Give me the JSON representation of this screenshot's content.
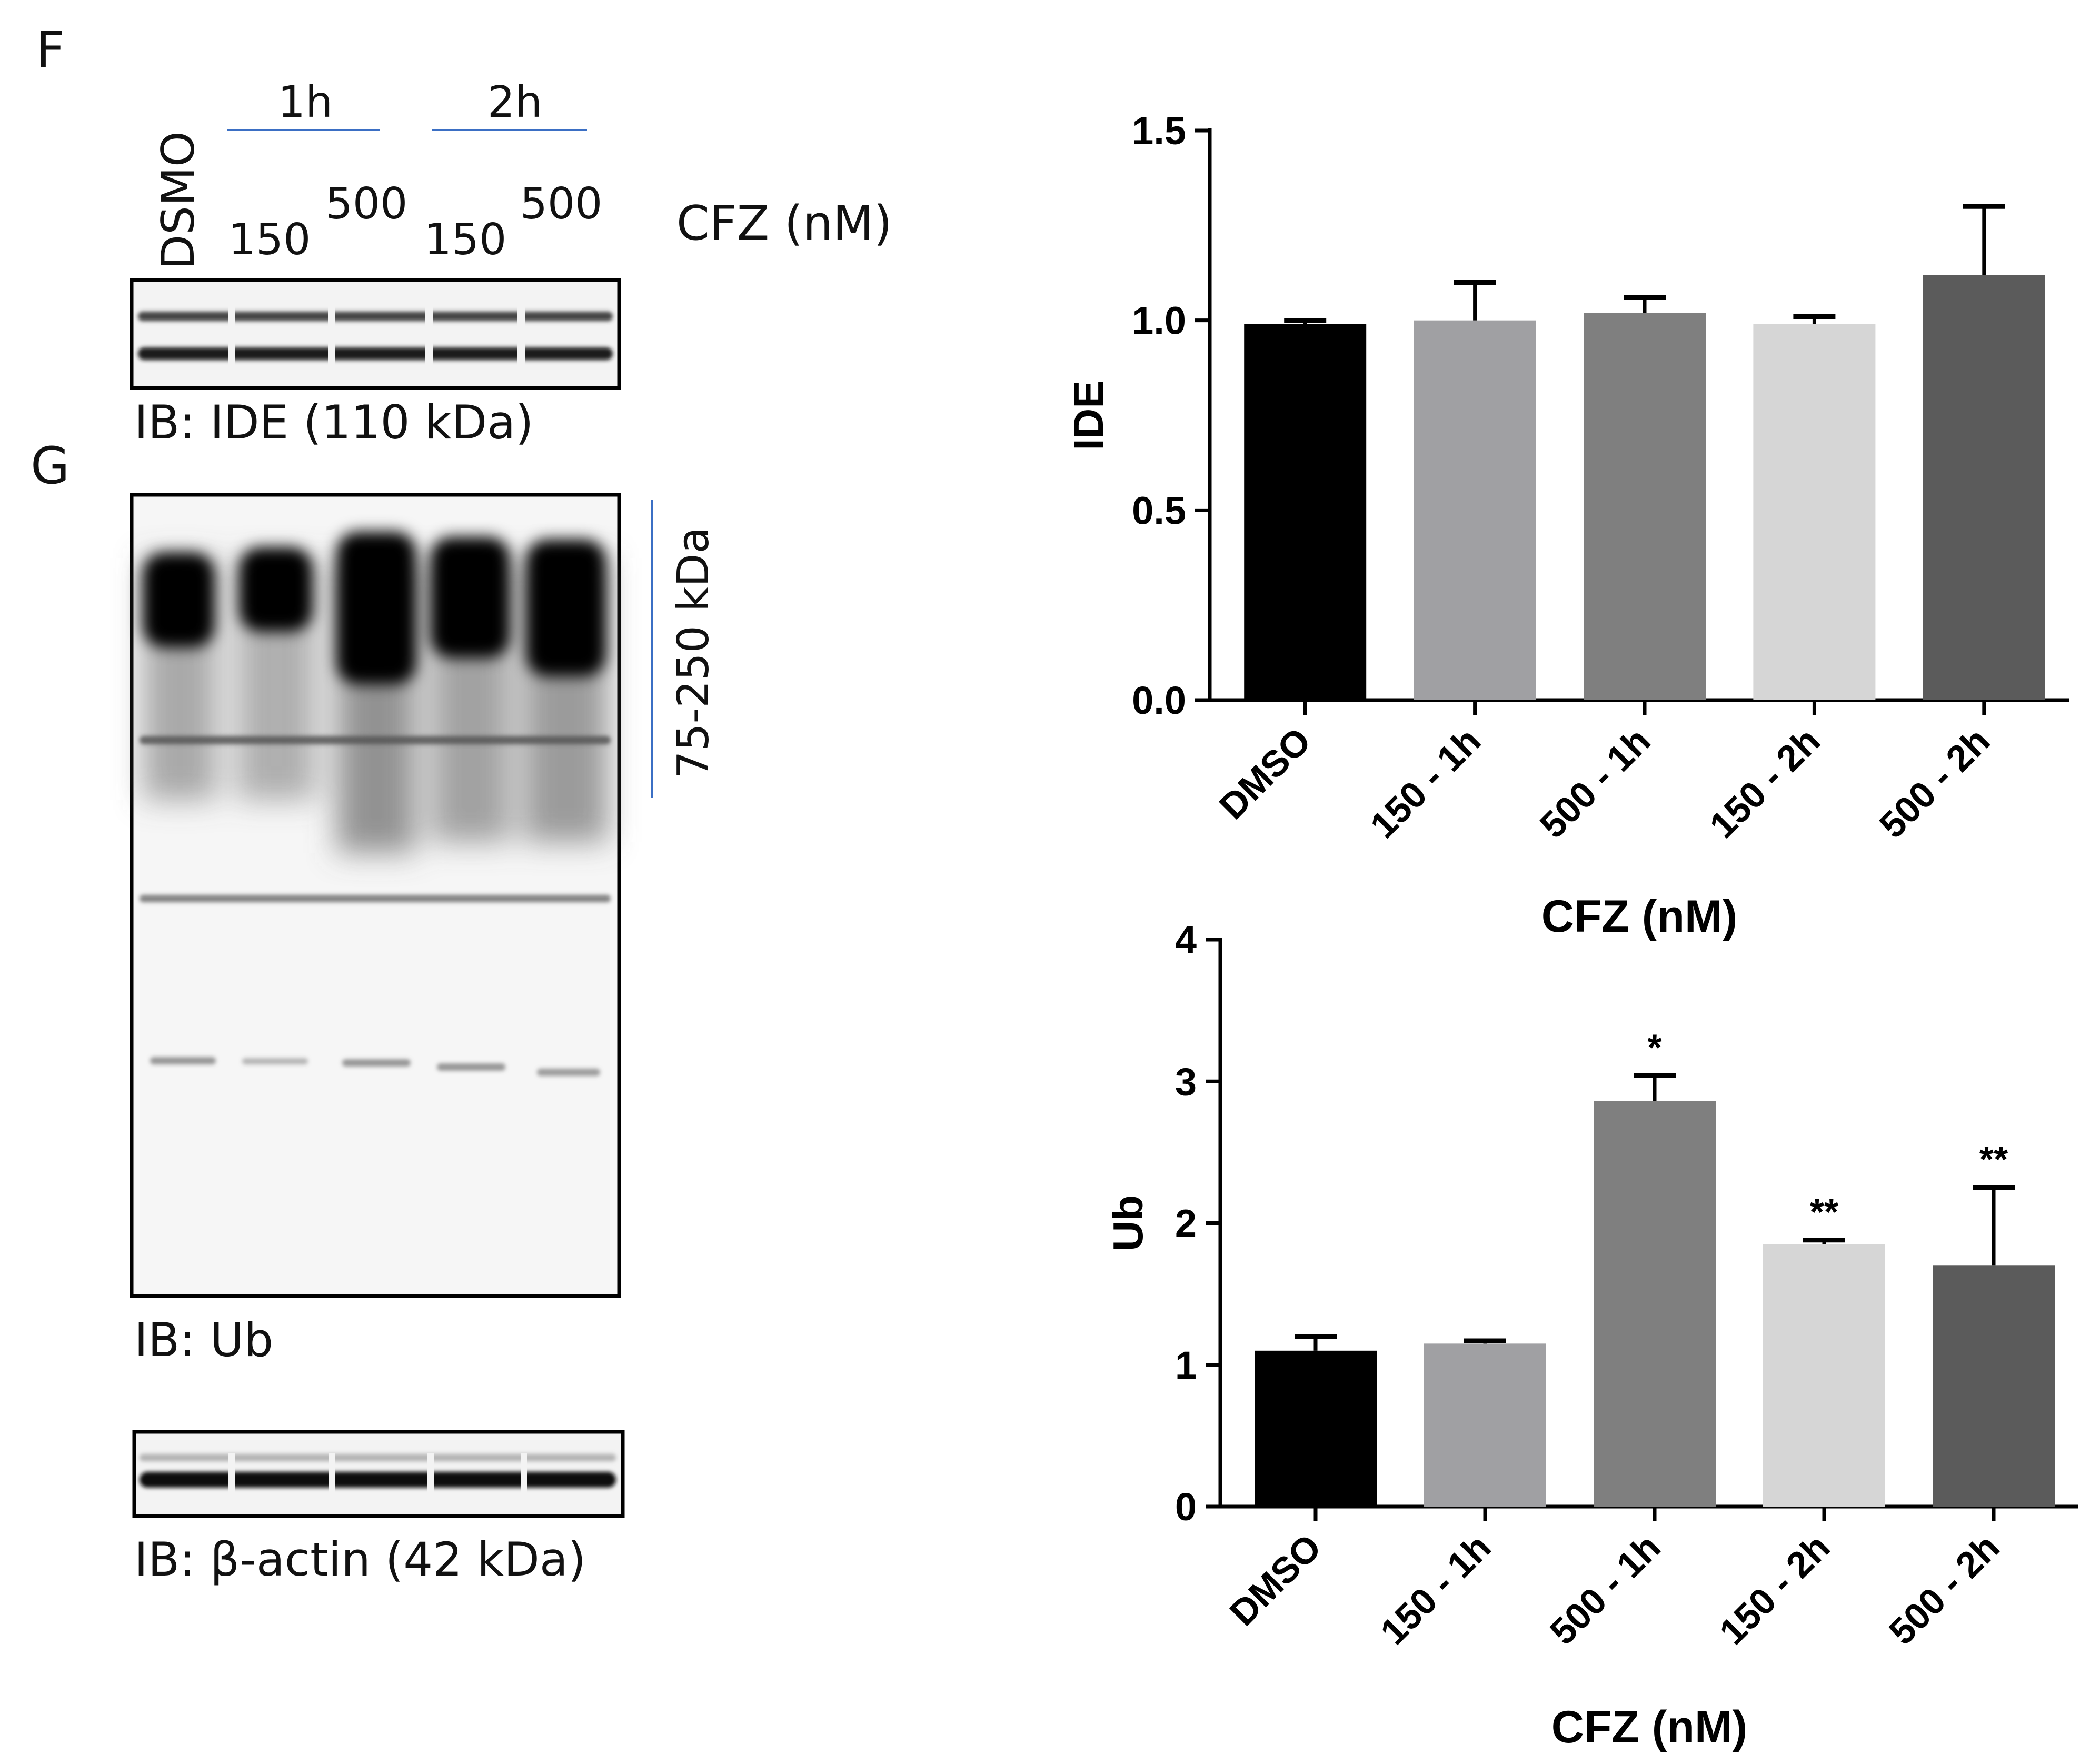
{
  "panel_labels": {
    "f": "F",
    "g": "G"
  },
  "blot_header": {
    "dmso_label": "DSMO",
    "time_groups": [
      "1h",
      "2h"
    ],
    "concentrations": [
      "150",
      "500",
      "150",
      "500"
    ],
    "treatment_label": "CFZ (nM)"
  },
  "blot_captions": {
    "ide": "IB: IDE (110 kDa)",
    "ub": "IB: Ub",
    "actin": "IB: β-actin (42 kDa)"
  },
  "mw_marker": "75-250 kDa",
  "colors": {
    "DMSO": "#000000",
    "150 - 1h": "#a0a0a3",
    "500 - 1h": "#7f7f7f",
    "150 - 2h": "#d6d6d6",
    "500 - 2h": "#5b5b5b"
  },
  "chart_data": [
    {
      "type": "bar",
      "categories": [
        "DMSO",
        "150 - 1h",
        "500 - 1h",
        "150 - 2h",
        "500 - 2h"
      ],
      "values": [
        0.99,
        1.0,
        1.02,
        0.99,
        1.12
      ],
      "errors": [
        0.01,
        0.1,
        0.04,
        0.02,
        0.18
      ],
      "significance": [
        "",
        "",
        "",
        "",
        ""
      ],
      "ylabel": "IDE",
      "xlabel": "CFZ (nM)",
      "ylim": [
        0,
        1.5
      ],
      "yticks": [
        "0.0",
        "0.5",
        "1.0",
        "1.5"
      ]
    },
    {
      "type": "bar",
      "categories": [
        "DMSO",
        "150 - 1h",
        "500 - 1h",
        "150 - 2h",
        "500 - 2h"
      ],
      "values": [
        1.1,
        1.15,
        2.86,
        1.85,
        1.7
      ],
      "errors": [
        0.1,
        0.02,
        0.18,
        0.03,
        0.55
      ],
      "significance": [
        "",
        "",
        "*",
        "**",
        "**"
      ],
      "ylabel": "Ub",
      "xlabel": "CFZ (nM)",
      "ylim": [
        0,
        4
      ],
      "yticks": [
        "0",
        "1",
        "2",
        "3",
        "4"
      ]
    }
  ]
}
